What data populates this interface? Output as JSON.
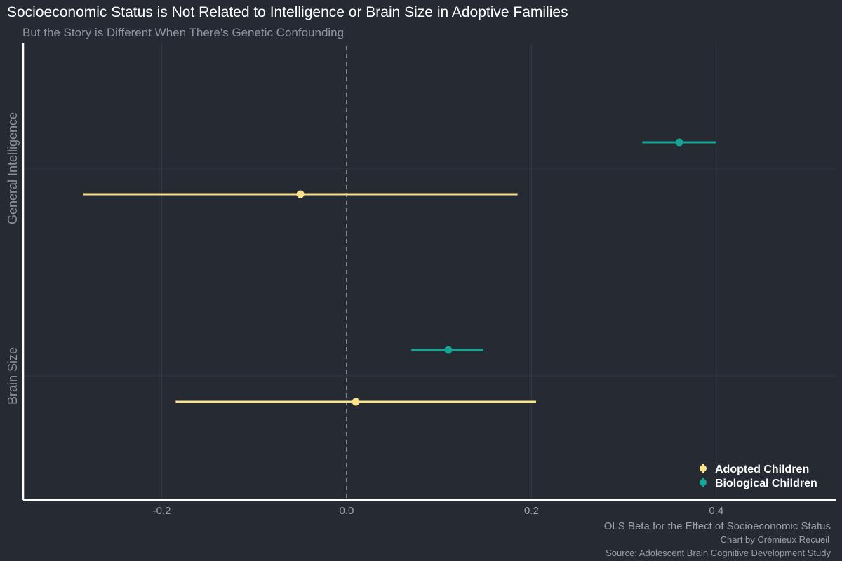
{
  "chart_data": {
    "type": "scatter",
    "subtype": "forest-plot",
    "title": "Socioeconomic Status is Not Related to Intelligence or Brain Size in Adoptive Families",
    "subtitle": "But the Story is Different When There's Genetic Confounding",
    "xlabel": "OLS Beta for the Effect of Socioeconomic Status",
    "ylabel": "",
    "captions": [
      "Chart by Crémieux Recueil",
      "Source: Adolescent Brain Cognitive Development Study"
    ],
    "xlim": [
      -0.35,
      0.53
    ],
    "x_ticks": [
      -0.2,
      0.0,
      0.2,
      0.4
    ],
    "x_tick_labels": [
      "-0.2",
      "0.0",
      "0.2",
      "0.4"
    ],
    "reference_line": 0,
    "grid": true,
    "legend_position": "bottom-right",
    "categories": [
      "General Intelligence",
      "Brain Size"
    ],
    "series": [
      {
        "name": "Adopted Children",
        "color": "#fce28a",
        "points": [
          {
            "category": "General Intelligence",
            "estimate": -0.05,
            "low": -0.285,
            "high": 0.185
          },
          {
            "category": "Brain Size",
            "estimate": 0.01,
            "low": -0.185,
            "high": 0.205
          }
        ]
      },
      {
        "name": "Biological Children",
        "color": "#14a594",
        "points": [
          {
            "category": "General Intelligence",
            "estimate": 0.36,
            "low": 0.32,
            "high": 0.4
          },
          {
            "category": "Brain Size",
            "estimate": 0.11,
            "low": 0.07,
            "high": 0.148
          }
        ]
      }
    ]
  }
}
